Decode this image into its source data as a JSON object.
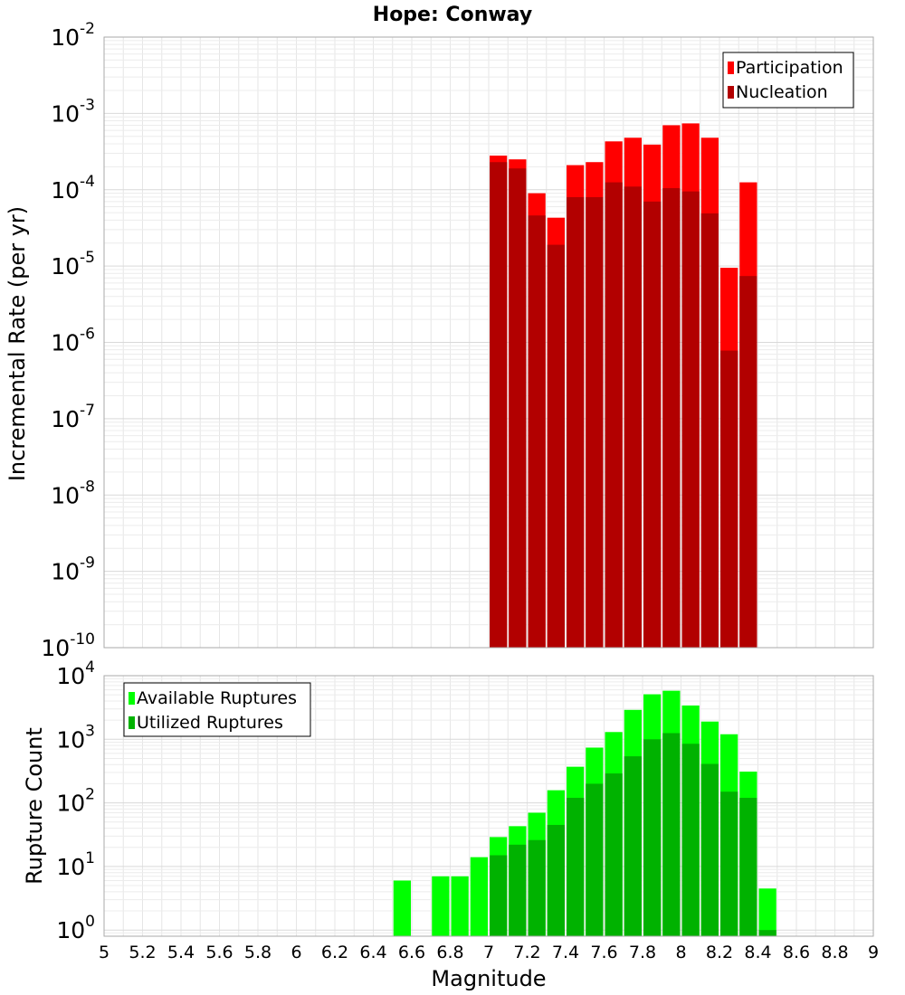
{
  "chart_data": [
    {
      "type": "bar",
      "title": "Hope: Conway",
      "xlabel": "",
      "ylabel": "Incremental Rate (per yr)",
      "yscale": "log",
      "ylim": [
        1e-10,
        0.01
      ],
      "xlim": [
        5,
        9
      ],
      "bin_width": 0.1,
      "y_tick_exponents": [
        "-10",
        "-9",
        "-8",
        "-7",
        "-6",
        "-5",
        "-4",
        "-3",
        "-2"
      ],
      "y_tick_base": "10",
      "legend": "top-right",
      "series": [
        {
          "name": "Participation",
          "color": "#ff0000",
          "x": [
            7.05,
            7.15,
            7.25,
            7.35,
            7.45,
            7.55,
            7.65,
            7.75,
            7.85,
            7.95,
            8.05,
            8.15,
            8.25,
            8.35
          ],
          "values": [
            0.00028,
            0.00025,
            9e-05,
            4.3e-05,
            0.00021,
            0.00023,
            0.00043,
            0.00048,
            0.00039,
            0.0007,
            0.00074,
            0.00048,
            9.5e-06,
            0.000125
          ]
        },
        {
          "name": "Nucleation",
          "color": "#b20000",
          "x": [
            7.05,
            7.15,
            7.25,
            7.35,
            7.45,
            7.55,
            7.65,
            7.75,
            7.85,
            7.95,
            8.05,
            8.15,
            8.25,
            8.35
          ],
          "values": [
            0.00023,
            0.00019,
            4.6e-05,
            1.9e-05,
            8e-05,
            8e-05,
            0.000125,
            0.00011,
            7e-05,
            0.000105,
            9.5e-05,
            4.9e-05,
            7.8e-07,
            7.4e-06
          ]
        }
      ]
    },
    {
      "type": "bar",
      "title": "",
      "xlabel": "Magnitude",
      "ylabel": "Rupture Count",
      "yscale": "log",
      "ylim": [
        0.8,
        10000.0
      ],
      "xlim": [
        5,
        9
      ],
      "bin_width": 0.1,
      "x_ticks": [
        "5",
        "5.2",
        "5.4",
        "5.6",
        "5.8",
        "6",
        "6.2",
        "6.4",
        "6.6",
        "6.8",
        "7",
        "7.2",
        "7.4",
        "7.6",
        "7.8",
        "8",
        "8.2",
        "8.4",
        "8.6",
        "8.8",
        "9"
      ],
      "y_tick_exponents": [
        "0",
        "1",
        "2",
        "3",
        "4"
      ],
      "y_tick_base": "10",
      "legend": "top-left",
      "series": [
        {
          "name": "Available Ruptures",
          "color": "#00ff00",
          "x": [
            6.55,
            6.75,
            6.85,
            6.95,
            7.05,
            7.15,
            7.25,
            7.35,
            7.45,
            7.55,
            7.65,
            7.75,
            7.85,
            7.95,
            8.05,
            8.15,
            8.25,
            8.35,
            8.45
          ],
          "values": [
            6,
            7,
            7,
            14,
            29,
            43,
            70,
            158,
            370,
            740,
            1300,
            2900,
            5100,
            5800,
            3400,
            1900,
            1200,
            310,
            4.5
          ]
        },
        {
          "name": "Utilized Ruptures",
          "color": "#00b200",
          "x": [
            7.05,
            7.15,
            7.25,
            7.35,
            7.45,
            7.55,
            7.65,
            7.75,
            7.85,
            7.95,
            8.05,
            8.15,
            8.25,
            8.35,
            8.45
          ],
          "values": [
            15,
            22,
            26,
            45,
            120,
            200,
            290,
            540,
            1000,
            1250,
            850,
            410,
            150,
            120,
            1
          ]
        }
      ]
    }
  ]
}
